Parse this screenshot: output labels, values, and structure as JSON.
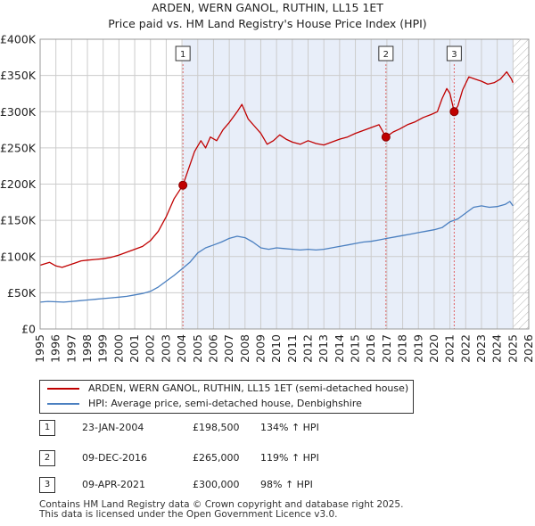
{
  "colors": {
    "property_line": "#c00000",
    "hpi_line": "#4a7fc0",
    "shade": "#e8eef9",
    "vline": "#e06060",
    "hatch": "#b0b0b0",
    "grid": "#cccccc"
  },
  "chart_data": {
    "type": "line",
    "title": "ARDEN, WERN GANOL, RUTHIN, LL15 1ET",
    "subtitle": "Price paid vs. HM Land Registry's House Price Index (HPI)",
    "xlim": [
      1995,
      2026
    ],
    "ylim": [
      0,
      400000
    ],
    "x_ticks": [
      "1995",
      "1996",
      "1997",
      "1998",
      "1999",
      "2000",
      "2001",
      "2002",
      "2003",
      "2004",
      "2005",
      "2006",
      "2007",
      "2008",
      "2009",
      "2010",
      "2011",
      "2012",
      "2013",
      "2014",
      "2015",
      "2016",
      "2017",
      "2018",
      "2019",
      "2020",
      "2021",
      "2022",
      "2023",
      "2024",
      "2025",
      "2026"
    ],
    "y_ticks": [
      {
        "value": 0,
        "label": "£0"
      },
      {
        "value": 50000,
        "label": "£50K"
      },
      {
        "value": 100000,
        "label": "£100K"
      },
      {
        "value": 150000,
        "label": "£150K"
      },
      {
        "value": 200000,
        "label": "£200K"
      },
      {
        "value": 250000,
        "label": "£250K"
      },
      {
        "value": 300000,
        "label": "£300K"
      },
      {
        "value": 350000,
        "label": "£350K"
      },
      {
        "value": 400000,
        "label": "£400K"
      }
    ],
    "grid": true,
    "shaded_span": [
      2004.06,
      2025.0
    ],
    "hatch_from": 2025.0,
    "series": [
      {
        "name": "ARDEN, WERN GANOL, RUTHIN, LL15 1ET (semi-detached house)",
        "color": "#c00000",
        "points": [
          [
            1995.0,
            88000
          ],
          [
            1995.3,
            90000
          ],
          [
            1995.6,
            92000
          ],
          [
            1996.0,
            87000
          ],
          [
            1996.4,
            85000
          ],
          [
            1996.8,
            88000
          ],
          [
            1997.2,
            91000
          ],
          [
            1997.6,
            94000
          ],
          [
            1998.0,
            95000
          ],
          [
            1998.5,
            96000
          ],
          [
            1999.0,
            97000
          ],
          [
            1999.5,
            99000
          ],
          [
            2000.0,
            102000
          ],
          [
            2000.5,
            106000
          ],
          [
            2001.0,
            110000
          ],
          [
            2001.5,
            114000
          ],
          [
            2002.0,
            122000
          ],
          [
            2002.5,
            135000
          ],
          [
            2003.0,
            155000
          ],
          [
            2003.5,
            180000
          ],
          [
            2004.06,
            198500
          ],
          [
            2004.4,
            220000
          ],
          [
            2004.8,
            245000
          ],
          [
            2005.2,
            260000
          ],
          [
            2005.5,
            250000
          ],
          [
            2005.8,
            265000
          ],
          [
            2006.2,
            260000
          ],
          [
            2006.6,
            275000
          ],
          [
            2007.0,
            285000
          ],
          [
            2007.5,
            300000
          ],
          [
            2007.8,
            310000
          ],
          [
            2008.2,
            290000
          ],
          [
            2008.6,
            280000
          ],
          [
            2009.0,
            270000
          ],
          [
            2009.4,
            255000
          ],
          [
            2009.8,
            260000
          ],
          [
            2010.2,
            268000
          ],
          [
            2010.6,
            262000
          ],
          [
            2011.0,
            258000
          ],
          [
            2011.5,
            255000
          ],
          [
            2012.0,
            260000
          ],
          [
            2012.5,
            256000
          ],
          [
            2013.0,
            254000
          ],
          [
            2013.5,
            258000
          ],
          [
            2014.0,
            262000
          ],
          [
            2014.5,
            265000
          ],
          [
            2015.0,
            270000
          ],
          [
            2015.5,
            274000
          ],
          [
            2016.0,
            278000
          ],
          [
            2016.5,
            282000
          ],
          [
            2016.94,
            265000
          ],
          [
            2017.4,
            272000
          ],
          [
            2017.8,
            276000
          ],
          [
            2018.3,
            282000
          ],
          [
            2018.8,
            286000
          ],
          [
            2019.3,
            292000
          ],
          [
            2019.8,
            296000
          ],
          [
            2020.2,
            300000
          ],
          [
            2020.5,
            318000
          ],
          [
            2020.8,
            332000
          ],
          [
            2021.0,
            325000
          ],
          [
            2021.27,
            300000
          ],
          [
            2021.5,
            308000
          ],
          [
            2021.8,
            330000
          ],
          [
            2022.2,
            348000
          ],
          [
            2022.6,
            345000
          ],
          [
            2023.0,
            342000
          ],
          [
            2023.4,
            338000
          ],
          [
            2023.8,
            340000
          ],
          [
            2024.2,
            345000
          ],
          [
            2024.6,
            355000
          ],
          [
            2024.9,
            345000
          ],
          [
            2025.0,
            340000
          ]
        ]
      },
      {
        "name": "HPI: Average price, semi-detached house, Denbighshire",
        "color": "#4a7fc0",
        "points": [
          [
            1995.0,
            37000
          ],
          [
            1995.5,
            38000
          ],
          [
            1996.0,
            37500
          ],
          [
            1996.5,
            37000
          ],
          [
            1997.0,
            38000
          ],
          [
            1997.5,
            39000
          ],
          [
            1998.0,
            40000
          ],
          [
            1998.5,
            41000
          ],
          [
            1999.0,
            42000
          ],
          [
            1999.5,
            43000
          ],
          [
            2000.0,
            44000
          ],
          [
            2000.5,
            45000
          ],
          [
            2001.0,
            47000
          ],
          [
            2001.5,
            49000
          ],
          [
            2002.0,
            52000
          ],
          [
            2002.5,
            58000
          ],
          [
            2003.0,
            66000
          ],
          [
            2003.5,
            74000
          ],
          [
            2004.0,
            83000
          ],
          [
            2004.5,
            92000
          ],
          [
            2005.0,
            105000
          ],
          [
            2005.5,
            112000
          ],
          [
            2006.0,
            116000
          ],
          [
            2006.5,
            120000
          ],
          [
            2007.0,
            125000
          ],
          [
            2007.5,
            128000
          ],
          [
            2008.0,
            126000
          ],
          [
            2008.5,
            120000
          ],
          [
            2009.0,
            112000
          ],
          [
            2009.5,
            110000
          ],
          [
            2010.0,
            112000
          ],
          [
            2010.5,
            111000
          ],
          [
            2011.0,
            110000
          ],
          [
            2011.5,
            109000
          ],
          [
            2012.0,
            110000
          ],
          [
            2012.5,
            109000
          ],
          [
            2013.0,
            110000
          ],
          [
            2013.5,
            112000
          ],
          [
            2014.0,
            114000
          ],
          [
            2014.5,
            116000
          ],
          [
            2015.0,
            118000
          ],
          [
            2015.5,
            120000
          ],
          [
            2016.0,
            121000
          ],
          [
            2016.5,
            123000
          ],
          [
            2017.0,
            125000
          ],
          [
            2017.5,
            127000
          ],
          [
            2018.0,
            129000
          ],
          [
            2018.5,
            131000
          ],
          [
            2019.0,
            133000
          ],
          [
            2019.5,
            135000
          ],
          [
            2020.0,
            137000
          ],
          [
            2020.5,
            140000
          ],
          [
            2021.0,
            148000
          ],
          [
            2021.5,
            152000
          ],
          [
            2022.0,
            160000
          ],
          [
            2022.5,
            168000
          ],
          [
            2023.0,
            170000
          ],
          [
            2023.5,
            168000
          ],
          [
            2024.0,
            169000
          ],
          [
            2024.5,
            172000
          ],
          [
            2024.8,
            176000
          ],
          [
            2025.0,
            170000
          ]
        ]
      }
    ],
    "sale_markers": [
      {
        "id": "1",
        "x": 2004.06,
        "y": 198500
      },
      {
        "id": "2",
        "x": 2016.94,
        "y": 265000
      },
      {
        "id": "3",
        "x": 2021.27,
        "y": 300000
      }
    ]
  },
  "legend": [
    {
      "label": "ARDEN, WERN GANOL, RUTHIN, LL15 1ET (semi-detached house)",
      "color": "#c00000"
    },
    {
      "label": "HPI: Average price, semi-detached house, Denbighshire",
      "color": "#4a7fc0"
    }
  ],
  "sales": [
    {
      "id": "1",
      "date": "23-JAN-2004",
      "price": "£198,500",
      "hpi": "134% ↑ HPI"
    },
    {
      "id": "2",
      "date": "09-DEC-2016",
      "price": "£265,000",
      "hpi": "119% ↑ HPI"
    },
    {
      "id": "3",
      "date": "09-APR-2021",
      "price": "£300,000",
      "hpi": "98% ↑ HPI"
    }
  ],
  "footer": {
    "line1": "Contains HM Land Registry data © Crown copyright and database right 2025.",
    "line2": "This data is licensed under the Open Government Licence v3.0."
  }
}
